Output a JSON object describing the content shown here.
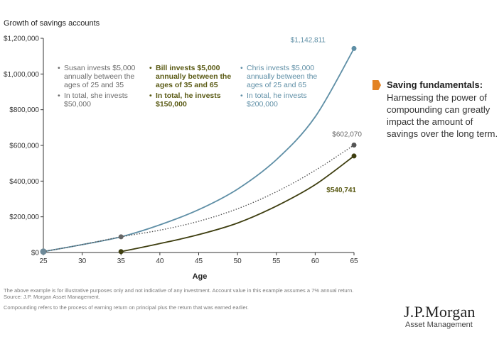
{
  "chart_data": {
    "type": "line",
    "title": "Growth of savings accounts",
    "xlabel": "Age",
    "ylabel": "",
    "xlim": [
      25,
      65
    ],
    "ylim": [
      0,
      1200000
    ],
    "x_ticks": [
      25,
      30,
      35,
      40,
      45,
      50,
      55,
      60,
      65
    ],
    "y_ticks": [
      0,
      200000,
      400000,
      600000,
      800000,
      1000000,
      1200000
    ],
    "x_tick_labels": [
      "25",
      "30",
      "35",
      "40",
      "45",
      "50",
      "55",
      "60",
      "65"
    ],
    "y_tick_labels": [
      "$0",
      "$200,000",
      "$400,000",
      "$600,000",
      "$800,000",
      "$1,000,000",
      "$1,200,000"
    ],
    "grid": false,
    "series": [
      {
        "key": "chris",
        "color": "#5f8fa6",
        "style": "solid",
        "x": [
          25,
          30,
          35,
          40,
          45,
          50,
          55,
          60,
          65
        ],
        "values": [
          5000,
          44000,
          88000,
          155000,
          240000,
          355000,
          520000,
          760000,
          1142811
        ],
        "end_label": "$1,142,811"
      },
      {
        "key": "susan",
        "color": "#555555",
        "style": "dotted",
        "x": [
          25,
          30,
          35,
          40,
          45,
          50,
          55,
          60,
          65
        ],
        "values": [
          5000,
          44000,
          88000,
          125000,
          175000,
          245000,
          340000,
          460000,
          602070
        ],
        "end_label": "$602,070"
      },
      {
        "key": "bill",
        "color": "#3e3e10",
        "style": "solid",
        "x": [
          35,
          40,
          45,
          50,
          55,
          60,
          65
        ],
        "values": [
          5000,
          50000,
          100000,
          165000,
          260000,
          380000,
          540741
        ],
        "end_label": "$540,741"
      }
    ]
  },
  "annotations": {
    "susan": {
      "line1": "Susan invests $5,000 annually between the ages of 25 and 35",
      "line2": "In total, she invests $50,000"
    },
    "bill": {
      "line1": "Bill invests $5,000 annually between the ages of 35 and 65",
      "line2": "In total, he invests $150,000"
    },
    "chris": {
      "line1": "Chris invests $5,000 annually between the ages of 25 and 65",
      "line2": "In total, he invests $200,000"
    }
  },
  "sidebar": {
    "title": "Saving fundamentals:",
    "body": "Harnessing the power of compounding can greatly impact the amount of savings over the long term.",
    "marker_color": "#e38324"
  },
  "footnotes": {
    "line1": "The above example is for illustrative purposes only and not indicative of any investment. Account value in this example assumes a 7% annual return.",
    "line2": "Source: J.P. Morgan Asset Management.",
    "line3": "Compounding refers to the process of earning return on principal plus the return that was earned earlier."
  },
  "logo": {
    "name": "J.P.Morgan",
    "sub": "Asset Management"
  }
}
